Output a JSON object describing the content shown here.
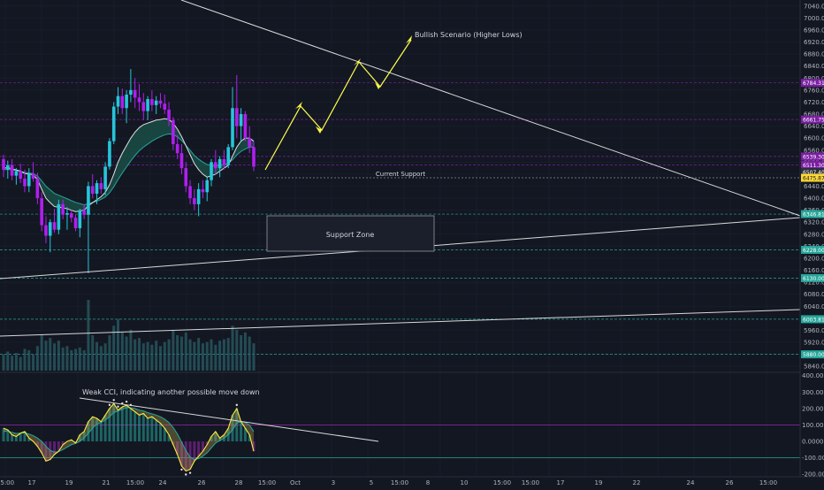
{
  "colors": {
    "background": "#131722",
    "grid": "#1c2030",
    "candle_up": "#26c6da",
    "candle_down": "#b01ff0",
    "ema_fast": "#e0e0e0",
    "ema_slow": "#26a69a",
    "ribbon_fill": "#1b4a45",
    "trendline": "#d9d9d9",
    "scenario_arrow": "#ffff4d",
    "purple_level": "#7b1fa2",
    "teal_level": "#26a69a",
    "cci_line": "#ffeb3b",
    "cci_green": "#26a69a",
    "cci_purple": "#9c27b0",
    "cci_orange": "#b8a44c",
    "volume": "#2a5f66"
  },
  "chart_data": [
    {
      "type": "candlestick",
      "title": "",
      "ylim": [
        5820,
        7060
      ],
      "y_ticks": [
        5840,
        5880,
        5920,
        5960,
        6040,
        6080,
        6120,
        6160,
        6200,
        6240,
        6280,
        6320,
        6360,
        6400,
        6440,
        6480,
        6520,
        6560,
        6600,
        6640,
        6680,
        6720,
        6760,
        6800,
        6840,
        6880,
        6920,
        6960,
        7000,
        7040
      ],
      "y_tick_labels": [
        "5840.00",
        "5880.00",
        "5920.00",
        "5960.00",
        "6040.00",
        "6080.00",
        "6120.00",
        "6160.00",
        "6200.00",
        "6240.00",
        "6280.00",
        "6320.00",
        "6360.00",
        "6400.00",
        "6440.00",
        "6480.00",
        "6520.00",
        "6560.00",
        "6600.00",
        "6640.00",
        "6680.00",
        "6720.00",
        "6760.00",
        "6800.00",
        "6840.00",
        "6880.00",
        "6920.00",
        "6960.00",
        "7000.00",
        "7040.00"
      ],
      "x_tick_labels": [
        "15:00",
        "17",
        "19",
        "21",
        "15:00",
        "24",
        "26",
        "28",
        "15:00",
        "Oct",
        "3",
        "5",
        "15:00",
        "8",
        "10",
        "15:00",
        "15:00",
        "17",
        "19",
        "22",
        "24",
        "26",
        "15:00"
      ],
      "price_badges": [
        {
          "label": "6784.31",
          "value": 6784,
          "color": "#7b1fa2"
        },
        {
          "label": "6661.75",
          "value": 6662,
          "color": "#7b1fa2"
        },
        {
          "label": "6539.30",
          "value": 6539,
          "color": "#7b1fa2"
        },
        {
          "label": "6511.30",
          "value": 6511,
          "color": "#7b1fa2"
        },
        {
          "label": "6507.40",
          "value": 6487,
          "color": "#2a2e39"
        },
        {
          "label": "6475.87",
          "value": 6468,
          "color": "#fdd835"
        },
        {
          "label": "6346.81",
          "value": 6347,
          "color": "#26a69a"
        },
        {
          "label": "6228.00",
          "value": 6228,
          "color": "#26a69a"
        },
        {
          "label": "6130.00",
          "value": 6134,
          "color": "#26a69a"
        },
        {
          "label": "6003.81",
          "value": 5997,
          "color": "#26a69a"
        },
        {
          "label": "5880.00",
          "value": 5880,
          "color": "#26a69a"
        }
      ],
      "ohlc": [
        [
          6530,
          6545,
          6470,
          6495
        ],
        [
          6495,
          6525,
          6465,
          6510
        ],
        [
          6510,
          6530,
          6460,
          6475
        ],
        [
          6475,
          6500,
          6445,
          6490
        ],
        [
          6490,
          6515,
          6450,
          6465
        ],
        [
          6465,
          6495,
          6420,
          6440
        ],
        [
          6440,
          6500,
          6420,
          6480
        ],
        [
          6480,
          6520,
          6455,
          6465
        ],
        [
          6465,
          6485,
          6380,
          6400
        ],
        [
          6400,
          6420,
          6290,
          6310
        ],
        [
          6310,
          6340,
          6250,
          6275
        ],
        [
          6275,
          6330,
          6220,
          6320
        ],
        [
          6320,
          6365,
          6285,
          6295
        ],
        [
          6295,
          6395,
          6280,
          6380
        ],
        [
          6380,
          6395,
          6330,
          6345
        ],
        [
          6345,
          6370,
          6295,
          6350
        ],
        [
          6350,
          6360,
          6320,
          6335
        ],
        [
          6335,
          6345,
          6290,
          6300
        ],
        [
          6300,
          6365,
          6270,
          6360
        ],
        [
          6360,
          6380,
          6330,
          6345
        ],
        [
          6345,
          6455,
          6150,
          6440
        ],
        [
          6440,
          6480,
          6400,
          6415
        ],
        [
          6415,
          6460,
          6380,
          6450
        ],
        [
          6450,
          6470,
          6415,
          6430
        ],
        [
          6430,
          6520,
          6410,
          6505
        ],
        [
          6505,
          6600,
          6495,
          6590
        ],
        [
          6590,
          6720,
          6580,
          6705
        ],
        [
          6705,
          6770,
          6680,
          6740
        ],
        [
          6740,
          6765,
          6680,
          6700
        ],
        [
          6700,
          6760,
          6650,
          6745
        ],
        [
          6745,
          6830,
          6720,
          6760
        ],
        [
          6760,
          6800,
          6700,
          6735
        ],
        [
          6735,
          6780,
          6690,
          6720
        ],
        [
          6720,
          6750,
          6660,
          6690
        ],
        [
          6690,
          6740,
          6660,
          6730
        ],
        [
          6730,
          6760,
          6690,
          6710
        ],
        [
          6710,
          6740,
          6680,
          6725
        ],
        [
          6725,
          6750,
          6700,
          6715
        ],
        [
          6715,
          6745,
          6680,
          6695
        ],
        [
          6695,
          6720,
          6640,
          6660
        ],
        [
          6660,
          6670,
          6560,
          6580
        ],
        [
          6580,
          6610,
          6530,
          6550
        ],
        [
          6550,
          6580,
          6480,
          6500
        ],
        [
          6500,
          6520,
          6420,
          6440
        ],
        [
          6440,
          6460,
          6380,
          6400
        ],
        [
          6400,
          6430,
          6360,
          6380
        ],
        [
          6380,
          6450,
          6340,
          6430
        ],
        [
          6430,
          6460,
          6400,
          6420
        ],
        [
          6420,
          6470,
          6390,
          6460
        ],
        [
          6460,
          6530,
          6440,
          6520
        ],
        [
          6520,
          6560,
          6480,
          6500
        ],
        [
          6500,
          6540,
          6470,
          6530
        ],
        [
          6530,
          6560,
          6495,
          6510
        ],
        [
          6510,
          6580,
          6500,
          6570
        ],
        [
          6570,
          6770,
          6560,
          6700
        ],
        [
          6700,
          6810,
          6600,
          6640
        ],
        [
          6640,
          6700,
          6590,
          6680
        ],
        [
          6680,
          6690,
          6590,
          6600
        ],
        [
          6600,
          6640,
          6550,
          6570
        ],
        [
          6570,
          6590,
          6490,
          6505
        ]
      ],
      "ema_fast": [
        6500,
        6502,
        6498,
        6494,
        6490,
        6482,
        6480,
        6478,
        6462,
        6430,
        6400,
        6385,
        6372,
        6370,
        6368,
        6365,
        6360,
        6355,
        6358,
        6360,
        6375,
        6385,
        6395,
        6405,
        6420,
        6445,
        6480,
        6520,
        6550,
        6575,
        6600,
        6620,
        6635,
        6645,
        6650,
        6655,
        6660,
        6662,
        6665,
        6662,
        6650,
        6630,
        6605,
        6575,
        6545,
        6515,
        6495,
        6480,
        6470,
        6475,
        6480,
        6490,
        6500,
        6510,
        6540,
        6570,
        6590,
        6600,
        6600,
        6590
      ],
      "ema_slow": [
        6495,
        6496,
        6494,
        6492,
        6490,
        6486,
        6484,
        6482,
        6474,
        6458,
        6440,
        6428,
        6416,
        6410,
        6404,
        6398,
        6392,
        6386,
        6382,
        6378,
        6382,
        6386,
        6390,
        6396,
        6404,
        6418,
        6438,
        6462,
        6484,
        6504,
        6524,
        6542,
        6558,
        6570,
        6580,
        6590,
        6598,
        6605,
        6611,
        6614,
        6612,
        6604,
        6592,
        6576,
        6560,
        6542,
        6530,
        6520,
        6512,
        6510,
        6508,
        6510,
        6512,
        6516,
        6528,
        6544,
        6556,
        6564,
        6570,
        6570
      ],
      "volume": [
        120,
        140,
        110,
        130,
        100,
        160,
        150,
        120,
        180,
        260,
        220,
        240,
        200,
        220,
        170,
        180,
        150,
        160,
        170,
        150,
        520,
        260,
        210,
        180,
        200,
        260,
        330,
        380,
        280,
        250,
        300,
        230,
        240,
        200,
        210,
        190,
        220,
        180,
        210,
        230,
        300,
        260,
        250,
        280,
        230,
        210,
        240,
        200,
        210,
        230,
        190,
        220,
        230,
        240,
        330,
        300,
        260,
        280,
        250,
        200
      ],
      "series": [
        {
          "name": "",
          "values": []
        }
      ]
    },
    {
      "type": "line",
      "title": "",
      "ylim": [
        -215,
        420
      ],
      "y_ticks": [
        400,
        300,
        200,
        100,
        0,
        -100,
        -200
      ],
      "y_tick_labels": [
        "400.0000",
        "300.0000",
        "200.0000",
        "100.0000",
        "0.0000",
        "-100.0000",
        "-200.0000"
      ],
      "cci": [
        80,
        70,
        40,
        30,
        50,
        60,
        20,
        0,
        -30,
        -70,
        -120,
        -110,
        -80,
        -60,
        -20,
        0,
        10,
        -10,
        40,
        60,
        120,
        150,
        140,
        120,
        160,
        200,
        230,
        190,
        210,
        220,
        200,
        180,
        160,
        170,
        140,
        150,
        130,
        110,
        80,
        40,
        -20,
        -80,
        -150,
        -180,
        -170,
        -120,
        -90,
        -60,
        -20,
        30,
        60,
        20,
        40,
        80,
        160,
        200,
        120,
        80,
        40,
        -60
      ],
      "cci_signal": [
        60,
        62,
        55,
        48,
        50,
        52,
        45,
        35,
        20,
        0,
        -30,
        -55,
        -65,
        -62,
        -50,
        -35,
        -20,
        -12,
        0,
        20,
        50,
        80,
        105,
        115,
        130,
        150,
        175,
        185,
        195,
        205,
        205,
        200,
        190,
        185,
        175,
        168,
        160,
        150,
        135,
        115,
        85,
        45,
        -5,
        -55,
        -95,
        -110,
        -105,
        -90,
        -70,
        -40,
        -10,
        5,
        20,
        40,
        70,
        110,
        120,
        115,
        100,
        60
      ]
    }
  ],
  "annotations": {
    "bullish_scenario": "Bullish Scenario (Higher Lows)",
    "current_support": "Current Support",
    "support_zone": "Support Zone",
    "weak_cci": "Weak CCI, indicating another possible move down"
  }
}
